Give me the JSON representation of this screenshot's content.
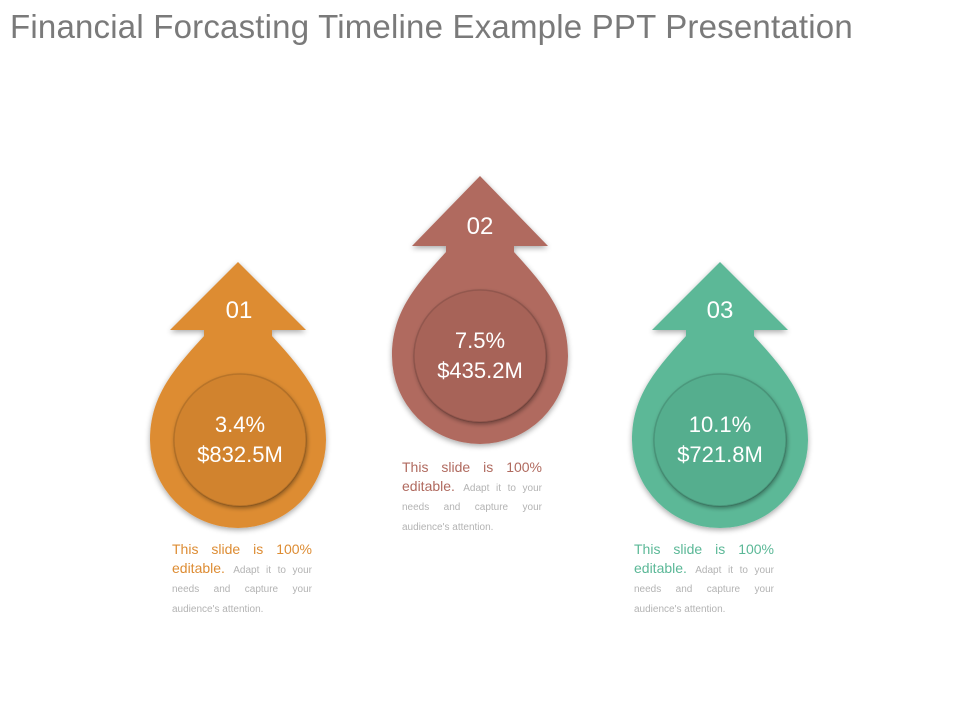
{
  "title": "Financial Forcasting Timeline Example PPT Presentation",
  "items": [
    {
      "number": "01",
      "percent": "3.4%",
      "amount": "$832.5M",
      "color": "#dd8c33",
      "circle_color": "#d1832f",
      "desc_lead": "This slide is 100% editable.",
      "desc_rest": "Adapt it to your needs and capture your audience's attention."
    },
    {
      "number": "02",
      "percent": "7.5%",
      "amount": "$435.2M",
      "color": "#b06a5f",
      "circle_color": "#a76358",
      "desc_lead": "This slide is 100% editable.",
      "desc_rest": "Adapt it to your needs and capture your audience's attention."
    },
    {
      "number": "03",
      "percent": "10.1%",
      "amount": "$721.8M",
      "color": "#5bb897",
      "circle_color": "#55ae8e",
      "desc_lead": "This slide is 100% editable.",
      "desc_rest": "Adapt it to your needs and capture your audience's attention."
    }
  ]
}
